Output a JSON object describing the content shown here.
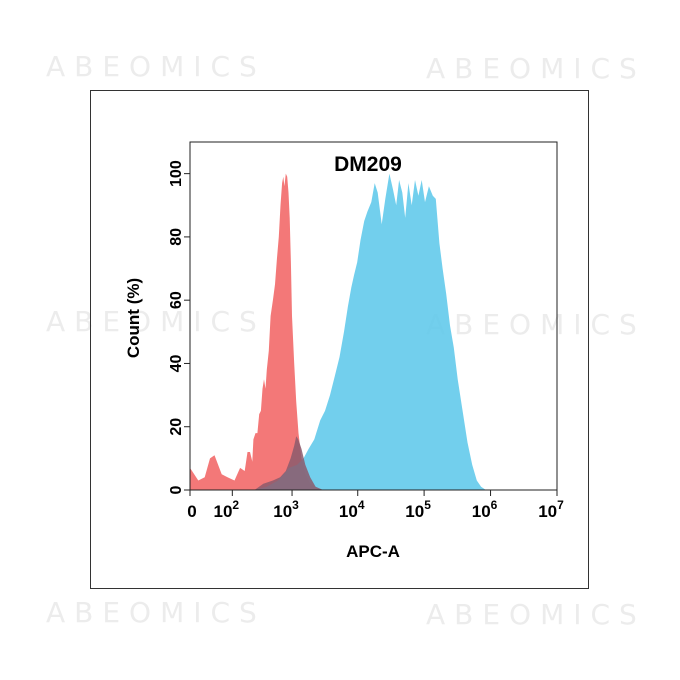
{
  "watermark_text": "ABEOMICS",
  "chart_data": {
    "type": "area",
    "title": "DM209",
    "xlabel": "APC-A",
    "ylabel": "Count (%)",
    "x_scale": "biexponential",
    "xlim": [
      0,
      10000000
    ],
    "ylim": [
      0,
      110
    ],
    "x_ticks": [
      {
        "value": 0,
        "base": "0",
        "exp": ""
      },
      {
        "value": 100,
        "base": "10",
        "exp": "2"
      },
      {
        "value": 1000,
        "base": "10",
        "exp": "3"
      },
      {
        "value": 10000,
        "base": "10",
        "exp": "4"
      },
      {
        "value": 100000,
        "base": "10",
        "exp": "5"
      },
      {
        "value": 1000000,
        "base": "10",
        "exp": "6"
      },
      {
        "value": 10000000,
        "base": "10",
        "exp": "7"
      }
    ],
    "y_ticks": [
      0,
      20,
      40,
      60,
      80,
      100
    ],
    "grid": false,
    "legend": "none",
    "series": [
      {
        "color": "#f26d6d",
        "points": [
          [
            -40,
            16
          ],
          [
            -30,
            12
          ],
          [
            -20,
            6
          ],
          [
            -10,
            9
          ],
          [
            0,
            7
          ],
          [
            10,
            3
          ],
          [
            20,
            4
          ],
          [
            30,
            10
          ],
          [
            40,
            11
          ],
          [
            60,
            5
          ],
          [
            80,
            4
          ],
          [
            110,
            3
          ],
          [
            140,
            7
          ],
          [
            170,
            6
          ],
          [
            190,
            12
          ],
          [
            210,
            12
          ],
          [
            230,
            9
          ],
          [
            240,
            16
          ],
          [
            260,
            18
          ],
          [
            280,
            18
          ],
          [
            300,
            24
          ],
          [
            320,
            25
          ],
          [
            340,
            32
          ],
          [
            360,
            35
          ],
          [
            380,
            32
          ],
          [
            400,
            38
          ],
          [
            430,
            44
          ],
          [
            460,
            55
          ],
          [
            500,
            60
          ],
          [
            540,
            65
          ],
          [
            580,
            73
          ],
          [
            620,
            80
          ],
          [
            660,
            90
          ],
          [
            700,
            97
          ],
          [
            730,
            99
          ],
          [
            760,
            96
          ],
          [
            800,
            100
          ],
          [
            840,
            99
          ],
          [
            880,
            94
          ],
          [
            920,
            86
          ],
          [
            960,
            72
          ],
          [
            1000,
            55
          ],
          [
            1080,
            40
          ],
          [
            1160,
            28
          ],
          [
            1260,
            18
          ],
          [
            1400,
            10
          ],
          [
            1600,
            5
          ],
          [
            1900,
            2
          ],
          [
            2300,
            1
          ],
          [
            3000,
            0
          ]
        ]
      },
      {
        "color": "#5ec8ea",
        "points": [
          [
            250,
            0
          ],
          [
            400,
            1
          ],
          [
            600,
            3
          ],
          [
            900,
            7
          ],
          [
            1200,
            8
          ],
          [
            1500,
            10
          ],
          [
            1800,
            13
          ],
          [
            2200,
            16
          ],
          [
            2700,
            22
          ],
          [
            3200,
            25
          ],
          [
            3800,
            30
          ],
          [
            4500,
            36
          ],
          [
            5300,
            42
          ],
          [
            6200,
            50
          ],
          [
            7100,
            58
          ],
          [
            8000,
            64
          ],
          [
            8800,
            68
          ],
          [
            9800,
            72
          ],
          [
            11000,
            79
          ],
          [
            12500,
            85
          ],
          [
            14000,
            88
          ],
          [
            16000,
            91
          ],
          [
            18000,
            97
          ],
          [
            20000,
            94
          ],
          [
            23000,
            84
          ],
          [
            26000,
            92
          ],
          [
            30000,
            100
          ],
          [
            34000,
            95
          ],
          [
            38000,
            90
          ],
          [
            42000,
            98
          ],
          [
            47000,
            94
          ],
          [
            52000,
            86
          ],
          [
            58000,
            97
          ],
          [
            65000,
            90
          ],
          [
            73000,
            98
          ],
          [
            82000,
            93
          ],
          [
            92000,
            98
          ],
          [
            103000,
            91
          ],
          [
            118000,
            96
          ],
          [
            135000,
            93
          ],
          [
            150000,
            92
          ],
          [
            170000,
            78
          ],
          [
            190000,
            70
          ],
          [
            215000,
            62
          ],
          [
            245000,
            52
          ],
          [
            280000,
            45
          ],
          [
            320000,
            35
          ],
          [
            380000,
            25
          ],
          [
            450000,
            15
          ],
          [
            530000,
            8
          ],
          [
            620000,
            3
          ],
          [
            720000,
            1
          ],
          [
            850000,
            0
          ]
        ]
      },
      {
        "color": "#8b5a6c",
        "points": [
          [
            250,
            0
          ],
          [
            350,
            2
          ],
          [
            500,
            3
          ],
          [
            650,
            4
          ],
          [
            800,
            6
          ],
          [
            950,
            10
          ],
          [
            1080,
            14
          ],
          [
            1160,
            17
          ],
          [
            1250,
            16
          ],
          [
            1400,
            13
          ],
          [
            1600,
            8
          ],
          [
            1900,
            4
          ],
          [
            2300,
            1
          ],
          [
            3000,
            0
          ]
        ]
      }
    ]
  }
}
